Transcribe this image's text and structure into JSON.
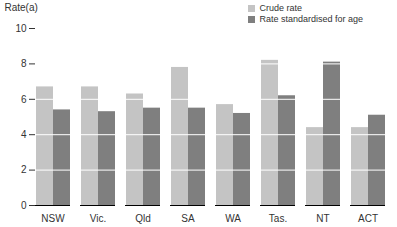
{
  "chart_data": {
    "type": "bar",
    "y_label": "Rate(a)",
    "categories": [
      "NSW",
      "Vic.",
      "Qld",
      "SA",
      "WA",
      "Tas.",
      "NT",
      "ACT"
    ],
    "series": [
      {
        "name": "Crude rate",
        "color": "#c4c4c4",
        "values": [
          6.7,
          6.7,
          6.3,
          7.8,
          5.7,
          8.2,
          4.4,
          4.4
        ]
      },
      {
        "name": "Rate standardised for age",
        "color": "#7f7f7f",
        "values": [
          5.4,
          5.3,
          5.5,
          5.5,
          5.2,
          6.2,
          8.1,
          5.1
        ]
      }
    ],
    "ylim": [
      0,
      10
    ],
    "yticks": [
      0,
      2,
      4,
      6,
      8,
      10
    ],
    "grid": true,
    "legend": "top-right"
  }
}
